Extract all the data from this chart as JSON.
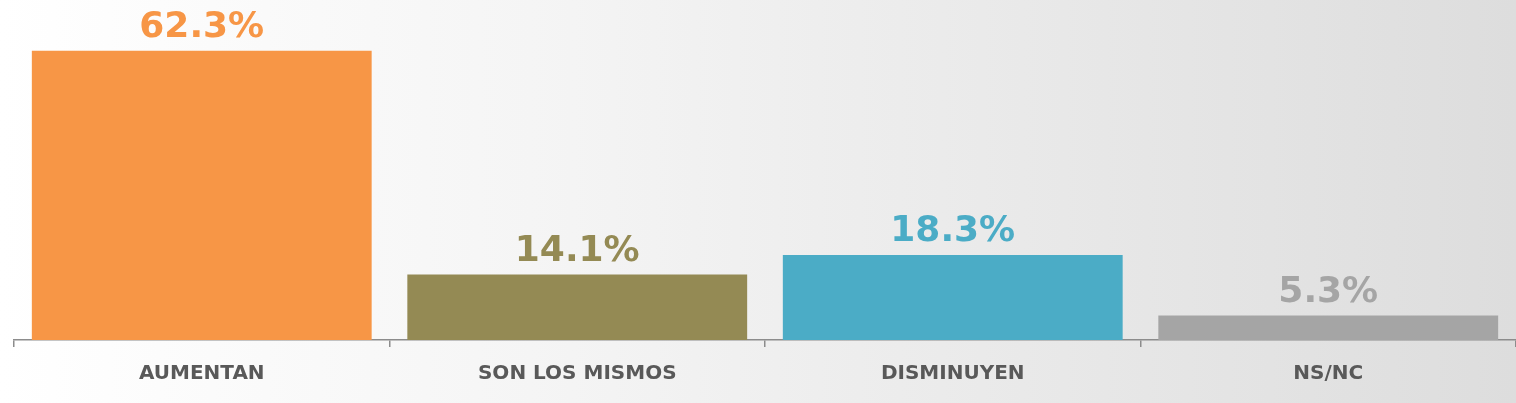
{
  "chart_data": {
    "type": "bar",
    "categories": [
      "AUMENTAN",
      "SON LOS MISMOS",
      "DISMINUYEN",
      "NS/NC"
    ],
    "values": [
      62.3,
      14.1,
      18.3,
      5.3
    ],
    "colors": [
      "#f79646",
      "#948a54",
      "#4bacc6",
      "#a5a5a5"
    ],
    "value_labels": [
      "62.3%",
      "14.1%",
      "18.3%",
      "5.3%"
    ],
    "grid": false,
    "legend": false
  }
}
